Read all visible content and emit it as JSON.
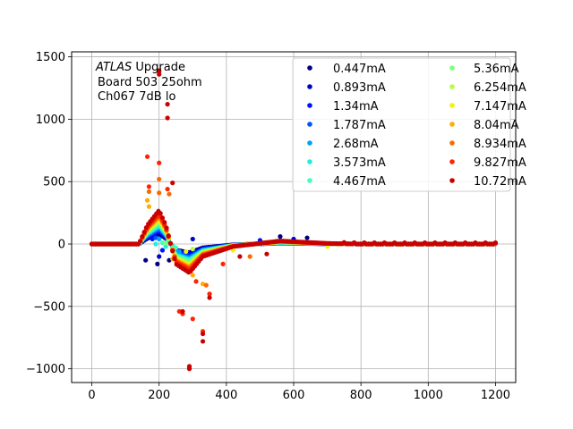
{
  "chart_data": {
    "type": "scatter",
    "title": "",
    "xlabel": "",
    "ylabel": "",
    "xlim": [
      -60,
      1260
    ],
    "ylim": [
      -1110,
      1540
    ],
    "grid": true,
    "legend_position": "top-right",
    "legend_columns": 2,
    "xticks": [
      0,
      200,
      400,
      600,
      800,
      1000,
      1200
    ],
    "yticks": [
      -1000,
      -500,
      0,
      500,
      1000,
      1500
    ],
    "xtick_labels": [
      "0",
      "200",
      "400",
      "600",
      "800",
      "1000",
      "1200"
    ],
    "ytick_labels": [
      "−1000",
      "−500",
      "0",
      "500",
      "1000",
      "1500"
    ],
    "annotation": {
      "line1_italic": "ATLAS",
      "line1_rest": " Upgrade",
      "line2": "Board 503 25ohm",
      "line3": "Ch067 7dB lo"
    },
    "series": [
      {
        "name": "0.447mA",
        "color": "#00007f",
        "amp": 0.3,
        "extra": [
          [
            160,
            -130
          ],
          [
            195,
            -160
          ],
          [
            230,
            -130
          ],
          [
            560,
            60
          ],
          [
            640,
            50
          ]
        ]
      },
      {
        "name": "0.893mA",
        "color": "#0000c8",
        "amp": 0.35,
        "extra": [
          [
            170,
            60
          ],
          [
            200,
            -100
          ],
          [
            300,
            40
          ],
          [
            600,
            40
          ]
        ]
      },
      {
        "name": "1.34mA",
        "color": "#0010ff",
        "amp": 0.4,
        "extra": [
          [
            180,
            40
          ],
          [
            210,
            -50
          ],
          [
            500,
            30
          ]
        ]
      },
      {
        "name": "1.787mA",
        "color": "#0054ff",
        "amp": 0.45,
        "extra": [
          [
            190,
            50
          ],
          [
            250,
            -40
          ]
        ]
      },
      {
        "name": "2.68mA",
        "color": "#00a0ff",
        "amp": 0.5,
        "extra": [
          [
            200,
            40
          ],
          [
            260,
            -60
          ]
        ]
      },
      {
        "name": "3.573mA",
        "color": "#20f0da",
        "amp": 0.55,
        "extra": [
          [
            190,
            0
          ],
          [
            220,
            -20
          ],
          [
            240,
            -10
          ]
        ]
      },
      {
        "name": "4.467mA",
        "color": "#40ffb6",
        "amp": 0.6,
        "extra": [
          [
            210,
            10
          ],
          [
            250,
            -30
          ]
        ]
      },
      {
        "name": "5.36mA",
        "color": "#7cff7a",
        "amp": 0.65,
        "extra": [
          [
            220,
            10
          ],
          [
            380,
            -30
          ]
        ]
      },
      {
        "name": "6.254mA",
        "color": "#b6ff40",
        "amp": 0.7,
        "extra": [
          [
            300,
            -40
          ],
          [
            400,
            -40
          ]
        ]
      },
      {
        "name": "7.147mA",
        "color": "#f0f20a",
        "amp": 0.75,
        "extra": [
          [
            280,
            -60
          ],
          [
            420,
            -50
          ],
          [
            700,
            -20
          ]
        ]
      },
      {
        "name": "8.04mA",
        "color": "#ffae00",
        "amp": 0.8,
        "extra": [
          [
            165,
            350
          ],
          [
            170,
            300
          ],
          [
            240,
            -120
          ],
          [
            300,
            -250
          ],
          [
            330,
            -320
          ]
        ]
      },
      {
        "name": "8.934mA",
        "color": "#ff6800",
        "amp": 0.85,
        "extra": [
          [
            170,
            420
          ],
          [
            200,
            520
          ],
          [
            200,
            410
          ],
          [
            230,
            400
          ],
          [
            340,
            -330
          ],
          [
            470,
            -100
          ]
        ]
      },
      {
        "name": "9.827mA",
        "color": "#ff2400",
        "amp": 0.9,
        "extra": [
          [
            165,
            700
          ],
          [
            170,
            460
          ],
          [
            200,
            650
          ],
          [
            200,
            1380
          ],
          [
            225,
            440
          ],
          [
            260,
            -540
          ],
          [
            270,
            -560
          ],
          [
            290,
            -990
          ],
          [
            300,
            -600
          ],
          [
            310,
            -300
          ],
          [
            330,
            -700
          ],
          [
            350,
            -400
          ],
          [
            390,
            -160
          ]
        ]
      },
      {
        "name": "10.72mA",
        "color": "#c80000",
        "amp": 1.0,
        "extra": [
          [
            200,
            1360
          ],
          [
            200,
            1390
          ],
          [
            225,
            1010
          ],
          [
            225,
            1120
          ],
          [
            240,
            490
          ],
          [
            270,
            -540
          ],
          [
            290,
            -980
          ],
          [
            290,
            -1000
          ],
          [
            330,
            -720
          ],
          [
            330,
            -780
          ],
          [
            350,
            -430
          ],
          [
            440,
            -100
          ],
          [
            520,
            -80
          ]
        ]
      }
    ]
  }
}
